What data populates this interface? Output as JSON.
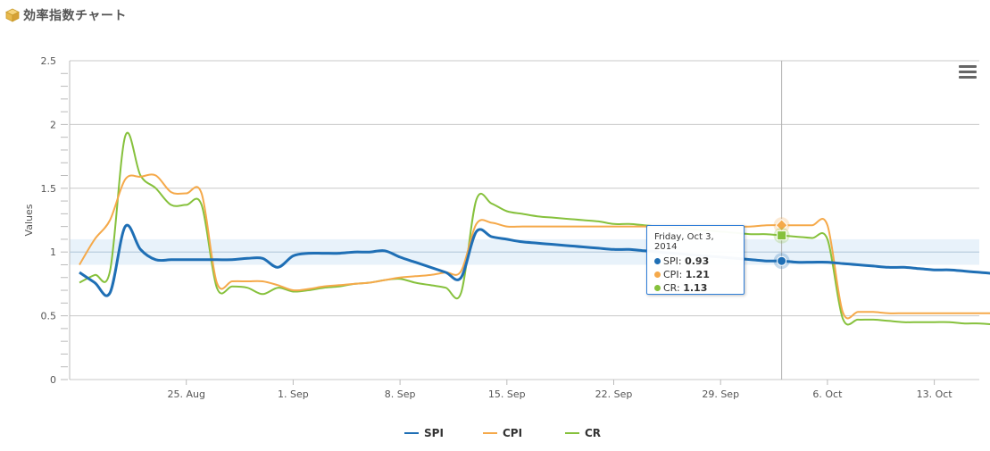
{
  "header": {
    "title": "効率指数チャート",
    "icon": "package-icon"
  },
  "menu": {
    "icon": "hamburger-menu-icon"
  },
  "chart_data": {
    "type": "line",
    "ylabel": "Values",
    "ylim": [
      0,
      2.5
    ],
    "yticks": [
      "0",
      "0.5",
      "1",
      "1.5",
      "2",
      "2.5"
    ],
    "yticks_values": [
      0,
      0.5,
      1,
      1.5,
      2,
      2.5
    ],
    "xticks": [
      "25. Aug",
      "1. Sep",
      "8. Sep",
      "15. Sep",
      "22. Sep",
      "29. Sep",
      "6. Oct",
      "13. Oct"
    ],
    "xticks_values": [
      "2014-08-25",
      "2014-09-01",
      "2014-09-08",
      "2014-09-15",
      "2014-09-22",
      "2014-09-29",
      "2014-10-06",
      "2014-10-13"
    ],
    "plot_band": {
      "from": 0.9,
      "to": 1.1,
      "color": "#e8f2fa"
    },
    "plot_line_value": 1,
    "crosshair_date": "2014-10-03",
    "x": [
      "2014-08-18",
      "2014-08-19",
      "2014-08-20",
      "2014-08-21",
      "2014-08-22",
      "2014-08-23",
      "2014-08-24",
      "2014-08-25",
      "2014-08-26",
      "2014-08-27",
      "2014-08-28",
      "2014-08-29",
      "2014-08-30",
      "2014-08-31",
      "2014-09-01",
      "2014-09-02",
      "2014-09-03",
      "2014-09-04",
      "2014-09-05",
      "2014-09-06",
      "2014-09-07",
      "2014-09-08",
      "2014-09-09",
      "2014-09-10",
      "2014-09-11",
      "2014-09-12",
      "2014-09-13",
      "2014-09-14",
      "2014-09-15",
      "2014-09-16",
      "2014-09-17",
      "2014-09-18",
      "2014-09-19",
      "2014-09-20",
      "2014-09-21",
      "2014-09-22",
      "2014-09-23",
      "2014-09-24",
      "2014-09-25",
      "2014-09-26",
      "2014-09-27",
      "2014-09-28",
      "2014-09-29",
      "2014-09-30",
      "2014-10-01",
      "2014-10-02",
      "2014-10-03",
      "2014-10-04",
      "2014-10-05",
      "2014-10-06",
      "2014-10-07",
      "2014-10-08",
      "2014-10-09",
      "2014-10-10",
      "2014-10-11",
      "2014-10-12",
      "2014-10-13",
      "2014-10-14",
      "2014-10-15",
      "2014-10-16",
      "2014-10-17"
    ],
    "series": [
      {
        "name": "SPI",
        "color": "#1f6fb5",
        "values": [
          0.84,
          0.76,
          0.68,
          1.2,
          1.02,
          0.94,
          0.94,
          0.94,
          0.94,
          0.94,
          0.94,
          0.95,
          0.95,
          0.88,
          0.97,
          0.99,
          0.99,
          0.99,
          1.0,
          1.0,
          1.01,
          0.96,
          0.92,
          0.88,
          0.84,
          0.8,
          1.16,
          1.12,
          1.1,
          1.08,
          1.07,
          1.06,
          1.05,
          1.04,
          1.03,
          1.02,
          1.02,
          1.01,
          1.0,
          0.99,
          0.98,
          0.97,
          0.96,
          0.95,
          0.94,
          0.93,
          0.93,
          0.92,
          0.92,
          0.92,
          0.91,
          0.9,
          0.89,
          0.88,
          0.88,
          0.87,
          0.86,
          0.86,
          0.85,
          0.84,
          0.83
        ]
      },
      {
        "name": "CPI",
        "color": "#f5a94a",
        "values": [
          0.9,
          1.1,
          1.25,
          1.57,
          1.59,
          1.6,
          1.47,
          1.46,
          1.46,
          0.76,
          0.77,
          0.77,
          0.77,
          0.74,
          0.7,
          0.71,
          0.73,
          0.74,
          0.75,
          0.76,
          0.78,
          0.8,
          0.81,
          0.82,
          0.84,
          0.85,
          1.22,
          1.23,
          1.2,
          1.2,
          1.2,
          1.2,
          1.2,
          1.2,
          1.2,
          1.2,
          1.2,
          1.2,
          1.2,
          1.2,
          1.2,
          1.2,
          1.2,
          1.2,
          1.2,
          1.21,
          1.21,
          1.21,
          1.21,
          1.21,
          0.53,
          0.53,
          0.53,
          0.52,
          0.52,
          0.52,
          0.52,
          0.52,
          0.52,
          0.52,
          0.52
        ]
      },
      {
        "name": "CR",
        "color": "#86c13c",
        "values": [
          0.76,
          0.82,
          0.85,
          1.91,
          1.6,
          1.5,
          1.37,
          1.37,
          1.37,
          0.72,
          0.73,
          0.72,
          0.67,
          0.72,
          0.69,
          0.7,
          0.72,
          0.73,
          0.75,
          0.76,
          0.78,
          0.79,
          0.76,
          0.74,
          0.72,
          0.68,
          1.41,
          1.38,
          1.32,
          1.3,
          1.28,
          1.27,
          1.26,
          1.25,
          1.24,
          1.22,
          1.22,
          1.21,
          1.2,
          1.19,
          1.18,
          1.17,
          1.16,
          1.15,
          1.14,
          1.14,
          1.13,
          1.12,
          1.11,
          1.1,
          0.48,
          0.47,
          0.47,
          0.46,
          0.45,
          0.45,
          0.45,
          0.45,
          0.44,
          0.44,
          0.43
        ]
      }
    ],
    "legend": {
      "position": "bottom-center",
      "items": [
        "SPI",
        "CPI",
        "CR"
      ]
    },
    "tooltip": {
      "date": "Friday, Oct 3, 2014",
      "rows": [
        {
          "label": "SPI",
          "value": "0.93"
        },
        {
          "label": "CPI",
          "value": "1.21"
        },
        {
          "label": "CR",
          "value": "1.13"
        }
      ]
    }
  }
}
